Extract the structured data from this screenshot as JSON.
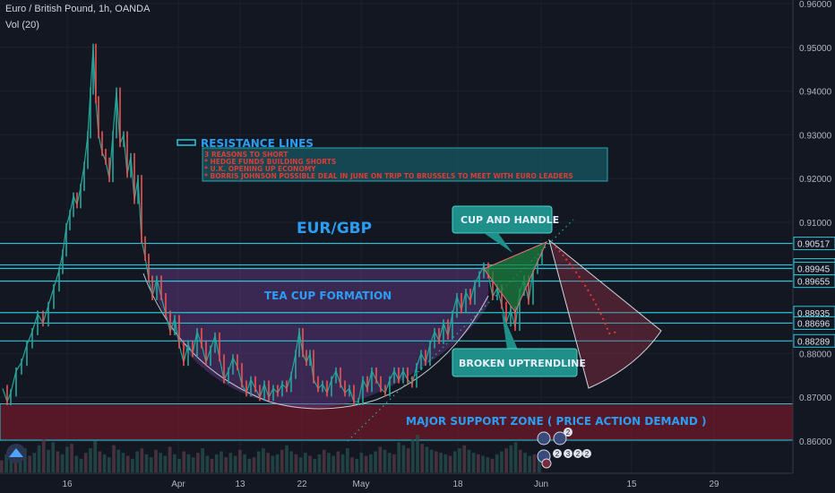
{
  "header": {
    "title": "Euro / British Pound, 1h, OANDA",
    "volume_label": "Vol (20)"
  },
  "chart_data": {
    "type": "line",
    "symbol": "EUR/GBP",
    "ylim": [
      0.855,
      0.96
    ],
    "y_ticks": [
      "0.96000",
      "0.95000",
      "0.94000",
      "0.93000",
      "0.92000",
      "0.91000",
      "0.88000",
      "0.87000",
      "0.86000"
    ],
    "x_ticks": [
      "16",
      "Apr",
      "13",
      "22",
      "May",
      "18",
      "Jun",
      "15",
      "29"
    ],
    "price_labels": [
      {
        "text": "0.90517",
        "value": 0.90517
      },
      {
        "text": "0.90025",
        "value": 0.90025
      },
      {
        "text": "0.89945",
        "value": 0.89945
      },
      {
        "text": "0.89655",
        "value": 0.89655
      },
      {
        "text": "0.88935",
        "value": 0.88935
      },
      {
        "text": "0.88696",
        "value": 0.88696
      },
      {
        "text": "0.88289",
        "value": 0.88289
      }
    ],
    "resistance_levels": [
      0.90517,
      0.90025,
      0.89945,
      0.89655,
      0.88935,
      0.88696,
      0.88289
    ],
    "support_zone": [
      0.8602,
      0.8685
    ],
    "price_points": [
      [
        3,
        0.872
      ],
      [
        8,
        0.869
      ],
      [
        12,
        0.871
      ],
      [
        18,
        0.876
      ],
      [
        24,
        0.878
      ],
      [
        30,
        0.882
      ],
      [
        36,
        0.885
      ],
      [
        42,
        0.889
      ],
      [
        48,
        0.887
      ],
      [
        54,
        0.891
      ],
      [
        60,
        0.895
      ],
      [
        66,
        0.899
      ],
      [
        70,
        0.903
      ],
      [
        74,
        0.909
      ],
      [
        78,
        0.912
      ],
      [
        82,
        0.916
      ],
      [
        86,
        0.914
      ],
      [
        90,
        0.918
      ],
      [
        94,
        0.923
      ],
      [
        98,
        0.93
      ],
      [
        101,
        0.94
      ],
      [
        104,
        0.95
      ],
      [
        107,
        0.938
      ],
      [
        110,
        0.93
      ],
      [
        114,
        0.926
      ],
      [
        118,
        0.924
      ],
      [
        122,
        0.92
      ],
      [
        126,
        0.93
      ],
      [
        130,
        0.94
      ],
      [
        134,
        0.928
      ],
      [
        138,
        0.93
      ],
      [
        142,
        0.921
      ],
      [
        146,
        0.925
      ],
      [
        150,
        0.915
      ],
      [
        154,
        0.92
      ],
      [
        158,
        0.906
      ],
      [
        162,
        0.902
      ],
      [
        166,
        0.897
      ],
      [
        170,
        0.893
      ],
      [
        175,
        0.897
      ],
      [
        180,
        0.893
      ],
      [
        185,
        0.889
      ],
      [
        190,
        0.885
      ],
      [
        195,
        0.888
      ],
      [
        200,
        0.882
      ],
      [
        205,
        0.878
      ],
      [
        210,
        0.882
      ],
      [
        215,
        0.88
      ],
      [
        220,
        0.885
      ],
      [
        225,
        0.882
      ],
      [
        230,
        0.878
      ],
      [
        235,
        0.881
      ],
      [
        240,
        0.884
      ],
      [
        245,
        0.879
      ],
      [
        250,
        0.874
      ],
      [
        255,
        0.876
      ],
      [
        260,
        0.879
      ],
      [
        265,
        0.877
      ],
      [
        270,
        0.873
      ],
      [
        275,
        0.871
      ],
      [
        280,
        0.874
      ],
      [
        285,
        0.872
      ],
      [
        290,
        0.87
      ],
      [
        295,
        0.873
      ],
      [
        300,
        0.87
      ],
      [
        305,
        0.872
      ],
      [
        310,
        0.871
      ],
      [
        315,
        0.873
      ],
      [
        320,
        0.872
      ],
      [
        325,
        0.875
      ],
      [
        330,
        0.88
      ],
      [
        334,
        0.885
      ],
      [
        338,
        0.88
      ],
      [
        342,
        0.878
      ],
      [
        346,
        0.88
      ],
      [
        350,
        0.874
      ],
      [
        355,
        0.872
      ],
      [
        360,
        0.873
      ],
      [
        365,
        0.871
      ],
      [
        370,
        0.874
      ],
      [
        375,
        0.876
      ],
      [
        380,
        0.873
      ],
      [
        385,
        0.871
      ],
      [
        390,
        0.872
      ],
      [
        395,
        0.869
      ],
      [
        400,
        0.869
      ],
      [
        405,
        0.874
      ],
      [
        410,
        0.872
      ],
      [
        415,
        0.876
      ],
      [
        420,
        0.874
      ],
      [
        425,
        0.872
      ],
      [
        430,
        0.871
      ],
      [
        435,
        0.874
      ],
      [
        440,
        0.876
      ],
      [
        445,
        0.874
      ],
      [
        450,
        0.876
      ],
      [
        455,
        0.874
      ],
      [
        460,
        0.873
      ],
      [
        465,
        0.877
      ],
      [
        470,
        0.88
      ],
      [
        475,
        0.878
      ],
      [
        480,
        0.882
      ],
      [
        485,
        0.885
      ],
      [
        490,
        0.883
      ],
      [
        495,
        0.887
      ],
      [
        500,
        0.884
      ],
      [
        505,
        0.889
      ],
      [
        510,
        0.893
      ],
      [
        515,
        0.89
      ],
      [
        520,
        0.894
      ],
      [
        525,
        0.892
      ],
      [
        530,
        0.896
      ],
      [
        535,
        0.898
      ],
      [
        540,
        0.9
      ],
      [
        545,
        0.898
      ],
      [
        550,
        0.893
      ],
      [
        555,
        0.895
      ],
      [
        560,
        0.891
      ],
      [
        565,
        0.887
      ],
      [
        570,
        0.89
      ],
      [
        575,
        0.886
      ],
      [
        580,
        0.894
      ],
      [
        585,
        0.897
      ],
      [
        590,
        0.892
      ],
      [
        595,
        0.899
      ],
      [
        600,
        0.901
      ],
      [
        605,
        0.903
      ]
    ],
    "volume_bars": [
      8,
      12,
      10,
      14,
      9,
      16,
      11,
      13,
      18,
      22,
      15,
      20,
      14,
      12,
      17,
      19,
      11,
      9,
      13,
      16,
      21,
      14,
      12,
      10,
      18,
      15,
      13,
      11,
      9,
      14,
      16,
      12,
      10,
      15,
      13,
      11,
      17,
      12,
      9,
      14,
      12,
      10,
      13,
      16,
      11,
      9,
      12,
      14,
      10,
      13,
      11,
      15,
      12,
      9,
      10,
      14,
      16,
      13,
      11,
      12,
      15,
      18,
      14,
      12,
      10,
      13,
      11,
      9,
      12,
      15,
      13,
      11,
      14,
      12,
      16,
      10,
      9,
      13,
      11,
      12,
      14,
      17,
      15,
      13,
      12,
      20,
      18,
      16,
      22,
      25,
      19,
      17,
      15,
      14,
      13,
      12,
      11,
      14,
      16,
      18,
      15,
      13,
      12,
      11,
      10,
      9,
      12,
      14,
      16,
      18,
      20,
      15,
      13,
      11,
      12,
      10
    ],
    "annotations": {
      "resistance_title": "RESISTANCE LINES",
      "notes": [
        "3 REASONS TO SHORT",
        "* HEDGE FUNDS BUILDING SHORTS",
        "* U.K. OPENING UP ECONOMY",
        "* BORRIS JOHNSON POSSIBLE DEAL IN JUNE ON TRIP TO BRUSSELS TO MEET WITH EURO LEADERS"
      ],
      "symbol_label": "EUR/GBP",
      "cup_and_handle": "CUP AND HANDLE",
      "tea_cup": "TEA CUP FORMATION",
      "broken_uptrend": "BROKEN UPTRENDLINE",
      "support_zone": "MAJOR SUPPORT ZONE ( PRICE ACTION DEMAND )"
    },
    "colors": {
      "background": "#131722",
      "resistance": "#26c6da",
      "purple_zone": "#7b4fa0",
      "support_zone": "#8b1e2b",
      "note_text": "#e53935",
      "label_box": "#1f8f8a",
      "candle_up": "#26a69a",
      "candle_down": "#ef5350"
    },
    "event_badges": [
      "2",
      "2",
      "3",
      "2",
      "2"
    ]
  }
}
